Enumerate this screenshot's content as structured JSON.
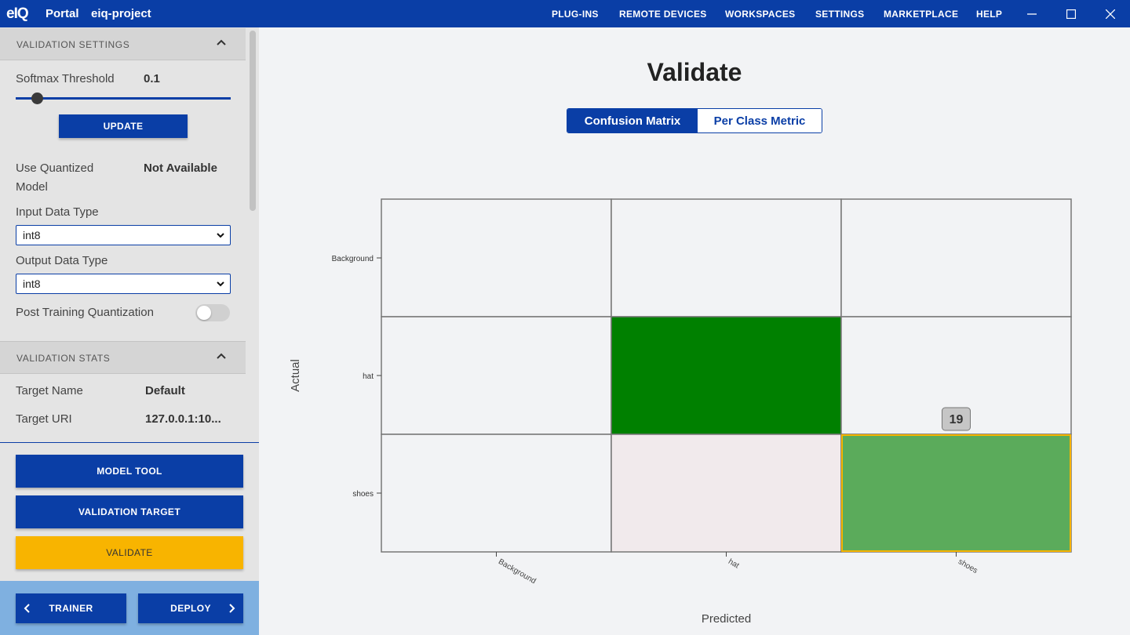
{
  "titlebar": {
    "logo": "eIQ",
    "app": "Portal",
    "project": "eiq-project",
    "menu": [
      "PLUG-INS",
      "REMOTE DEVICES",
      "WORKSPACES",
      "SETTINGS",
      "MARKETPLACE",
      "HELP"
    ]
  },
  "sidebar": {
    "validation_settings": {
      "title": "VALIDATION SETTINGS",
      "softmax_label": "Softmax Threshold",
      "softmax_value": "0.1",
      "softmax_fraction": 0.1,
      "update_label": "UPDATE",
      "use_quantized_label_1": "Use Quantized",
      "use_quantized_label_2": "Model",
      "use_quantized_value": "Not Available",
      "input_type_label": "Input Data Type",
      "input_type_value": "int8",
      "output_type_label": "Output Data Type",
      "output_type_value": "int8",
      "ptq_label": "Post Training Quantization",
      "ptq_enabled": false
    },
    "validation_stats": {
      "title": "VALIDATION STATS",
      "target_name_label": "Target Name",
      "target_name_value": "Default",
      "target_uri_label": "Target URI",
      "target_uri_value": "127.0.0.1:10..."
    },
    "actions": {
      "model_tool": "MODEL TOOL",
      "validation_target": "VALIDATION TARGET",
      "validate": "VALIDATE"
    },
    "footer": {
      "trainer": "TRAINER",
      "deploy": "DEPLOY"
    }
  },
  "main": {
    "title": "Validate",
    "tabs": [
      {
        "label": "Confusion Matrix",
        "active": true
      },
      {
        "label": "Per Class Metric",
        "active": false
      }
    ],
    "tooltip_value": "19"
  },
  "colors": {
    "brand_blue": "#0a3ea6",
    "accent_yellow": "#f8b400",
    "cell_dark_green": "#008000",
    "cell_mid_green": "#5bab5b",
    "cell_light_pink": "#f1eaec",
    "cell_empty": "#f2f3f5"
  },
  "chart_data": {
    "type": "heatmap",
    "xlabel": "Predicted",
    "ylabel": "Actual",
    "x_categories": [
      "Background",
      "hat",
      "shoes"
    ],
    "y_categories": [
      "Background",
      "hat",
      "shoes"
    ],
    "cells": [
      {
        "actual": "Background",
        "predicted": "Background",
        "level": 0
      },
      {
        "actual": "Background",
        "predicted": "hat",
        "level": 0
      },
      {
        "actual": "Background",
        "predicted": "shoes",
        "level": 0
      },
      {
        "actual": "hat",
        "predicted": "Background",
        "level": 0
      },
      {
        "actual": "hat",
        "predicted": "hat",
        "level": 1
      },
      {
        "actual": "hat",
        "predicted": "shoes",
        "level": 0
      },
      {
        "actual": "shoes",
        "predicted": "Background",
        "level": 0
      },
      {
        "actual": "shoes",
        "predicted": "hat",
        "level": 0.05
      },
      {
        "actual": "shoes",
        "predicted": "shoes",
        "value": 19,
        "level": 0.65,
        "highlighted": true
      }
    ]
  }
}
